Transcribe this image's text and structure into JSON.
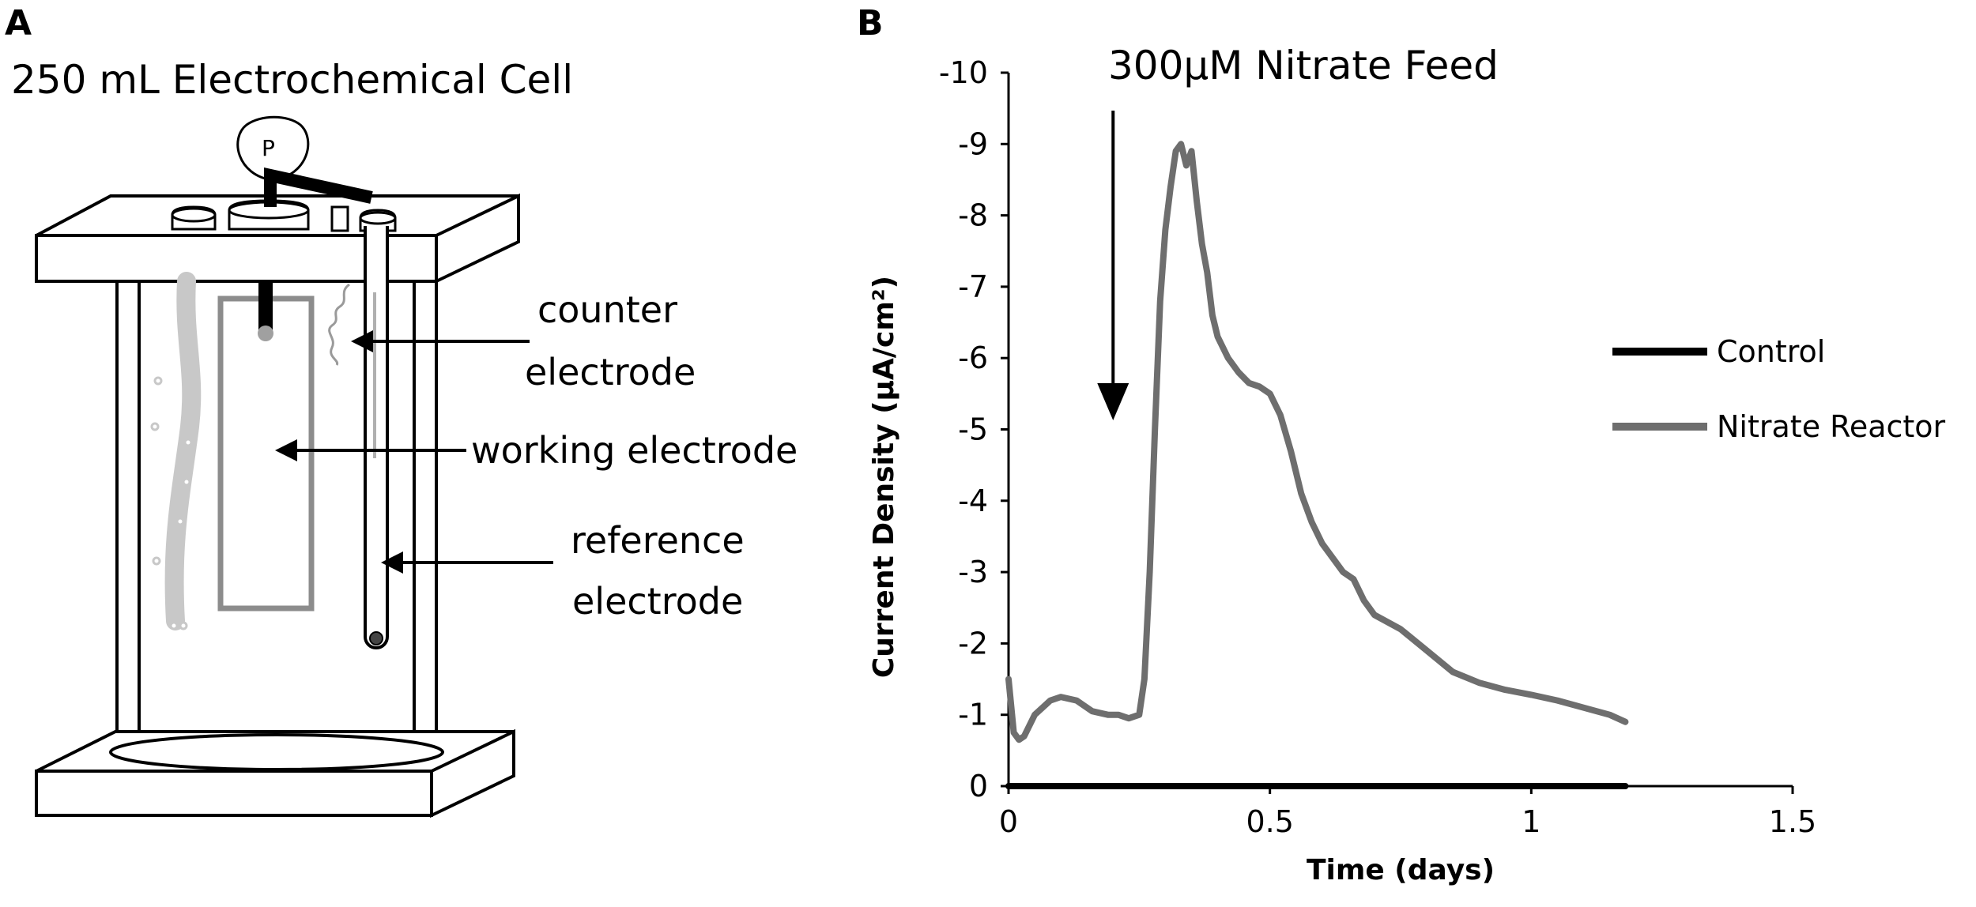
{
  "panel_a": {
    "letter": "A",
    "title": "250 mL Electrochemical Cell",
    "pump_label": "P",
    "labels": {
      "counter_line1": "counter",
      "counter_line2": "electrode",
      "working": "working electrode",
      "reference_line1": "reference",
      "reference_line2": "electrode"
    }
  },
  "panel_b": {
    "letter": "B",
    "annotation": "300µM Nitrate Feed"
  },
  "colors": {
    "control": "#000000",
    "nitrate": "#6e6e6e",
    "vessel": "#000000",
    "counter_rod": "#c8c8c8",
    "working_frame": "#8c8c8c"
  },
  "chart_data": {
    "type": "line",
    "title": "",
    "xlabel": "Time (days)",
    "ylabel": "Current Density (µA/cm²)",
    "xlim": [
      0,
      1.5
    ],
    "ylim": [
      0,
      -10
    ],
    "y_axis_inverted": true,
    "xticks": [
      0,
      0.5,
      1,
      1.5
    ],
    "xtick_labels": [
      "0",
      "0.5",
      "1",
      "1.5"
    ],
    "yticks": [
      0,
      -1,
      -2,
      -3,
      -4,
      -5,
      -6,
      -7,
      -8,
      -9,
      -10
    ],
    "ytick_labels": [
      "0",
      "-1",
      "-2",
      "-3",
      "-4",
      "-5",
      "-6",
      "-7",
      "-8",
      "-9",
      "-10"
    ],
    "grid": false,
    "legend": "right",
    "annotation_x": 0.2,
    "series": [
      {
        "name": "Control",
        "x": [
          0,
          1.18
        ],
        "y": [
          0,
          0
        ]
      },
      {
        "name": "Nitrate Reactor",
        "x": [
          0,
          0.01,
          0.02,
          0.03,
          0.05,
          0.08,
          0.1,
          0.13,
          0.16,
          0.19,
          0.21,
          0.23,
          0.25,
          0.26,
          0.27,
          0.28,
          0.29,
          0.3,
          0.31,
          0.32,
          0.33,
          0.34,
          0.35,
          0.36,
          0.37,
          0.38,
          0.39,
          0.4,
          0.42,
          0.44,
          0.46,
          0.48,
          0.5,
          0.52,
          0.54,
          0.56,
          0.58,
          0.6,
          0.62,
          0.64,
          0.66,
          0.68,
          0.7,
          0.75,
          0.8,
          0.85,
          0.9,
          0.95,
          1.0,
          1.05,
          1.1,
          1.15,
          1.18
        ],
        "y": [
          -1.5,
          -0.75,
          -0.65,
          -0.7,
          -1.0,
          -1.2,
          -1.25,
          -1.2,
          -1.05,
          -1.0,
          -1.0,
          -0.95,
          -1.0,
          -1.5,
          -3.0,
          -5.0,
          -6.8,
          -7.8,
          -8.4,
          -8.9,
          -9.0,
          -8.7,
          -8.9,
          -8.2,
          -7.6,
          -7.2,
          -6.6,
          -6.3,
          -6.0,
          -5.8,
          -5.65,
          -5.6,
          -5.5,
          -5.2,
          -4.7,
          -4.1,
          -3.7,
          -3.4,
          -3.2,
          -3.0,
          -2.9,
          -2.6,
          -2.4,
          -2.2,
          -1.9,
          -1.6,
          -1.45,
          -1.35,
          -1.28,
          -1.2,
          -1.1,
          -1.0,
          -0.9
        ]
      }
    ]
  }
}
